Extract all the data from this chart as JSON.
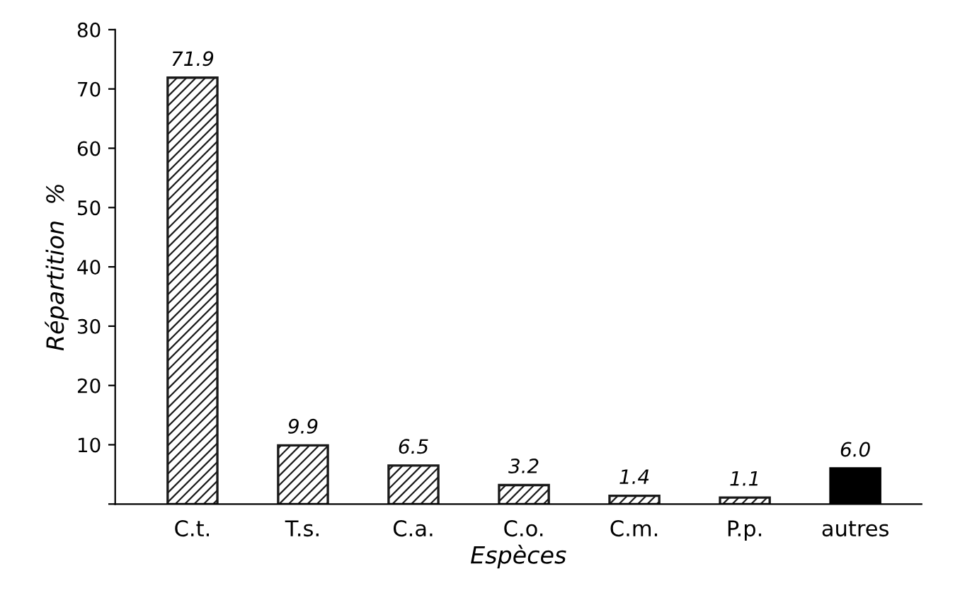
{
  "chart_data": {
    "type": "bar",
    "xlabel": "Espèces",
    "ylabel": "Répartition  %",
    "categories": [
      "C.t.",
      "T.s.",
      "C.a.",
      "C.o.",
      "C.m.",
      "P.p.",
      "autres"
    ],
    "values": [
      71.9,
      9.9,
      6.5,
      3.2,
      1.4,
      1.1,
      6.0
    ],
    "colors": [
      "#1a1a1a",
      "#1a1a1a",
      "#1a1a1a",
      "#1a1a1a",
      "#1a1a1a",
      "#1a1a1a",
      "#000000"
    ],
    "value_labels": [
      "71.9",
      "9.9",
      "6.5",
      "3.2",
      "1.4",
      "1.1",
      "6.0"
    ],
    "ylim": [
      0,
      80
    ],
    "yticks": [
      {
        "value": 0,
        "label": null
      },
      10,
      20,
      30,
      40,
      50,
      60,
      70,
      80
    ],
    "grid": false
  }
}
